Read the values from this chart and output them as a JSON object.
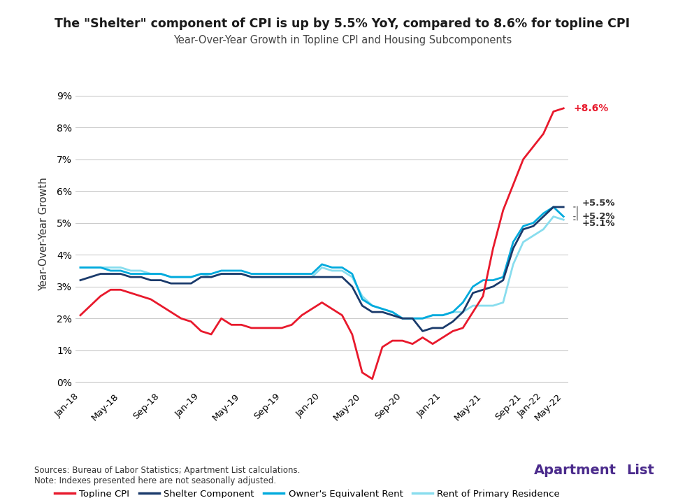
{
  "title": "The \"Shelter\" component of CPI is up by 5.5% YoY, compared to 8.6% for topline CPI",
  "subtitle": "Year-Over-Year Growth in Topline CPI and Housing Subcomponents",
  "ylabel": "Year-Over-Year Growth",
  "background_color": "#ffffff",
  "title_color": "#1a1a1a",
  "grid_color": "#cccccc",
  "ylim": [
    -0.002,
    0.095
  ],
  "yticks": [
    0.0,
    0.01,
    0.02,
    0.03,
    0.04,
    0.05,
    0.06,
    0.07,
    0.08,
    0.09
  ],
  "ytick_labels": [
    "0%",
    "1%",
    "2%",
    "3%",
    "4%",
    "5%",
    "6%",
    "7%",
    "8%",
    "9%"
  ],
  "source_text": "Sources: Bureau of Labor Statistics; Apartment List calculations.\nNote: Indexes presented here are not seasonally adjusted.",
  "series": {
    "topline_cpi": {
      "label": "Topline CPI",
      "color": "#e8192c",
      "linewidth": 2.0,
      "values": [
        0.021,
        0.024,
        0.027,
        0.029,
        0.029,
        0.028,
        0.027,
        0.026,
        0.024,
        0.022,
        0.02,
        0.019,
        0.016,
        0.015,
        0.02,
        0.018,
        0.018,
        0.017,
        0.017,
        0.017,
        0.017,
        0.018,
        0.021,
        0.023,
        0.025,
        0.023,
        0.021,
        0.015,
        0.003,
        0.001,
        0.011,
        0.013,
        0.013,
        0.012,
        0.014,
        0.012,
        0.014,
        0.016,
        0.017,
        0.022,
        0.027,
        0.042,
        0.054,
        0.062,
        0.07,
        0.074,
        0.078,
        0.085,
        0.086
      ]
    },
    "shelter": {
      "label": "Shelter Component",
      "color": "#1a3a6b",
      "linewidth": 2.0,
      "values": [
        0.032,
        0.033,
        0.034,
        0.034,
        0.034,
        0.033,
        0.033,
        0.032,
        0.032,
        0.031,
        0.031,
        0.031,
        0.033,
        0.033,
        0.034,
        0.034,
        0.034,
        0.033,
        0.033,
        0.033,
        0.033,
        0.033,
        0.033,
        0.033,
        0.033,
        0.033,
        0.033,
        0.03,
        0.024,
        0.022,
        0.022,
        0.021,
        0.02,
        0.02,
        0.016,
        0.017,
        0.017,
        0.019,
        0.022,
        0.028,
        0.029,
        0.03,
        0.032,
        0.042,
        0.048,
        0.049,
        0.052,
        0.055,
        0.055
      ]
    },
    "owners_equiv": {
      "label": "Owner's Equivalent Rent",
      "color": "#00aadd",
      "linewidth": 2.0,
      "values": [
        0.036,
        0.036,
        0.036,
        0.035,
        0.035,
        0.034,
        0.034,
        0.034,
        0.034,
        0.033,
        0.033,
        0.033,
        0.034,
        0.034,
        0.035,
        0.035,
        0.035,
        0.034,
        0.034,
        0.034,
        0.034,
        0.034,
        0.034,
        0.034,
        0.037,
        0.036,
        0.036,
        0.034,
        0.026,
        0.024,
        0.023,
        0.022,
        0.02,
        0.02,
        0.02,
        0.021,
        0.021,
        0.022,
        0.025,
        0.03,
        0.032,
        0.032,
        0.033,
        0.044,
        0.049,
        0.05,
        0.053,
        0.055,
        0.052
      ]
    },
    "primary_rent": {
      "label": "Rent of Primary Residence",
      "color": "#88ddee",
      "linewidth": 2.0,
      "values": [
        0.036,
        0.036,
        0.036,
        0.036,
        0.036,
        0.035,
        0.035,
        0.034,
        0.034,
        0.033,
        0.033,
        0.033,
        0.034,
        0.033,
        0.034,
        0.034,
        0.034,
        0.033,
        0.033,
        0.033,
        0.033,
        0.033,
        0.033,
        0.033,
        0.036,
        0.035,
        0.035,
        0.033,
        0.027,
        0.024,
        0.023,
        0.022,
        0.02,
        0.02,
        0.02,
        0.021,
        0.021,
        0.022,
        0.022,
        0.024,
        0.024,
        0.024,
        0.025,
        0.037,
        0.044,
        0.046,
        0.048,
        0.052,
        0.051
      ]
    }
  },
  "x_labels": [
    "Jan-18",
    "May-18",
    "Sep-18",
    "Jan-19",
    "May-19",
    "Sep-19",
    "Jan-20",
    "May-20",
    "Sep-20",
    "Jan-21",
    "May-21",
    "Sep-21",
    "Jan-22",
    "May-22"
  ],
  "x_label_indices": [
    0,
    4,
    8,
    12,
    16,
    20,
    24,
    28,
    32,
    36,
    40,
    44,
    46,
    48
  ],
  "end_labels": {
    "topline_cpi": "+8.6%",
    "shelter": "+5.5%",
    "owners_equiv": "+5.2%",
    "primary_rent": "+5.1%"
  }
}
